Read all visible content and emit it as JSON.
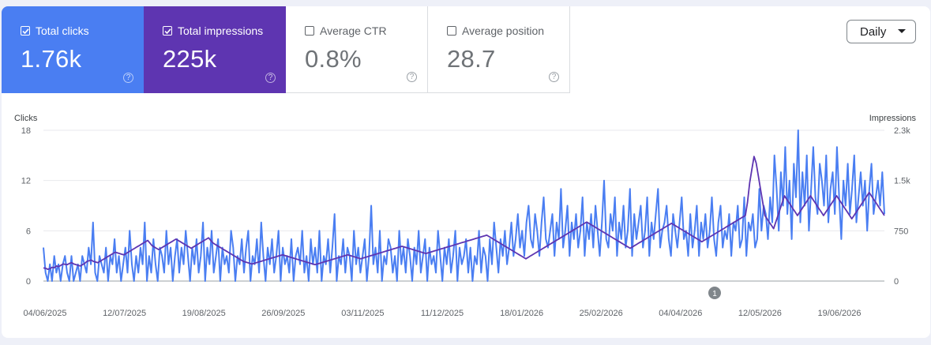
{
  "metrics": [
    {
      "label": "Total clicks",
      "value": "1.76k",
      "checked": true,
      "color": "#4a7ef2"
    },
    {
      "label": "Total impressions",
      "value": "225k",
      "checked": true,
      "color": "#5e35b1"
    },
    {
      "label": "Average CTR",
      "value": "0.8%",
      "checked": false
    },
    {
      "label": "Average position",
      "value": "28.7",
      "checked": false
    }
  ],
  "help_glyph": "?",
  "range_select": {
    "selected": "Daily"
  },
  "annotation_marker": "1",
  "chart_data": {
    "type": "line",
    "xlabel": "",
    "ylabel_left": "Clicks",
    "ylabel_right": "Impressions",
    "x_tick_labels": [
      "04/06/2025",
      "12/07/2025",
      "19/08/2025",
      "26/09/2025",
      "03/11/2025",
      "11/12/2025",
      "18/01/2026",
      "25/02/2026",
      "04/04/2026",
      "12/05/2026",
      "19/06/2026"
    ],
    "y_left": {
      "ticks": [
        "0",
        "6",
        "12",
        "18"
      ],
      "lim": [
        0,
        18
      ]
    },
    "y_right": {
      "ticks": [
        "0",
        "750",
        "1.5k",
        "2.3k"
      ],
      "lim": [
        0,
        2300
      ]
    },
    "grid": true,
    "series": [
      {
        "name": "Clicks",
        "axis": "left",
        "color": "#4a7ef2",
        "values": [
          4,
          1,
          0,
          2,
          0,
          3,
          1,
          2,
          0,
          2,
          3,
          1,
          0,
          3,
          0,
          1,
          2,
          0,
          3,
          2,
          1,
          4,
          2,
          7,
          1,
          0,
          3,
          2,
          1,
          4,
          0,
          3,
          2,
          5,
          1,
          3,
          0,
          2,
          4,
          1,
          6,
          2,
          0,
          3,
          1,
          4,
          2,
          7,
          0,
          3,
          1,
          5,
          2,
          0,
          4,
          3,
          1,
          6,
          2,
          4,
          0,
          3,
          5,
          1,
          4,
          2,
          6,
          3,
          0,
          4,
          2,
          5,
          1,
          3,
          7,
          0,
          4,
          2,
          6,
          1,
          3,
          5,
          0,
          4,
          2,
          3,
          1,
          6,
          4,
          0,
          3,
          2,
          5,
          1,
          4,
          6,
          0,
          3,
          2,
          5,
          1,
          7,
          3,
          0,
          4,
          2,
          5,
          1,
          3,
          6,
          0,
          4,
          2,
          3,
          1,
          5,
          0,
          3,
          4,
          2,
          6,
          1,
          3,
          0,
          5,
          2,
          4,
          1,
          6,
          0,
          3,
          2,
          5,
          1,
          4,
          8,
          0,
          3,
          2,
          5,
          1,
          4,
          3,
          0,
          6,
          2,
          4,
          1,
          3,
          5,
          0,
          3,
          9,
          2,
          4,
          1,
          6,
          0,
          3,
          2,
          5,
          4,
          1,
          3,
          0,
          6,
          2,
          4,
          1,
          5,
          3,
          0,
          4,
          2,
          6,
          1,
          3,
          5,
          0,
          4,
          2,
          3,
          1,
          6,
          3,
          0,
          4,
          2,
          5,
          1,
          3,
          6,
          0,
          4,
          2,
          3,
          5,
          1,
          4,
          0,
          3,
          2,
          6,
          1,
          4,
          3,
          0,
          5,
          2,
          7,
          4,
          1,
          5,
          3,
          6,
          2,
          4,
          7,
          3,
          5,
          8,
          4,
          6,
          3,
          7,
          9,
          5,
          4,
          8,
          6,
          3,
          7,
          10,
          5,
          4,
          6,
          8,
          3,
          7,
          5,
          11,
          4,
          6,
          9,
          3,
          7,
          5,
          8,
          4,
          6,
          10,
          3,
          7,
          5,
          8,
          4,
          9,
          6,
          3,
          7,
          12,
          5,
          4,
          8,
          6,
          10,
          3,
          7,
          5,
          9,
          4,
          6,
          11,
          3,
          8,
          5,
          7,
          9,
          4,
          6,
          10,
          3,
          7,
          5,
          8,
          11,
          4,
          6,
          7,
          9,
          5,
          3,
          8,
          6,
          4,
          7,
          10,
          5,
          6,
          3,
          8,
          4,
          6,
          9,
          3,
          7,
          5,
          8,
          4,
          6,
          10,
          5,
          3,
          7,
          9,
          4,
          6,
          5,
          8,
          3,
          7,
          6,
          9,
          4,
          5,
          10,
          3,
          7,
          6,
          8,
          4,
          5,
          11,
          6,
          9,
          8,
          5,
          10,
          7,
          15,
          11,
          6,
          13,
          9,
          16,
          8,
          12,
          5,
          14,
          10,
          18,
          7,
          13,
          9,
          15,
          6,
          11,
          16,
          10,
          8,
          14,
          12,
          9,
          15,
          7,
          11,
          13,
          8,
          16,
          10,
          5,
          12,
          9,
          14,
          8,
          11,
          15,
          7,
          10,
          13,
          9,
          12,
          6,
          11,
          14,
          8,
          10,
          12,
          9,
          13,
          8
        ],
        "visual_stroke_width": 2
      },
      {
        "name": "Impressions",
        "axis": "right",
        "color": "#5e35b1",
        "values": [
          200,
          195,
          180,
          190,
          210,
          205,
          230,
          220,
          240,
          260,
          255,
          250,
          270,
          280,
          260,
          250,
          240,
          230,
          250,
          270,
          300,
          310,
          320,
          300,
          290,
          280,
          300,
          320,
          340,
          360,
          380,
          400,
          420,
          440,
          430,
          420,
          410,
          400,
          420,
          440,
          460,
          480,
          500,
          520,
          540,
          560,
          580,
          600,
          620,
          580,
          540,
          520,
          500,
          480,
          500,
          520,
          540,
          560,
          580,
          600,
          620,
          640,
          620,
          600,
          580,
          560,
          540,
          520,
          500,
          520,
          540,
          560,
          580,
          600,
          620,
          640,
          660,
          620,
          580,
          560,
          540,
          520,
          500,
          480,
          460,
          440,
          420,
          400,
          380,
          360,
          340,
          320,
          300,
          290,
          280,
          270,
          260,
          270,
          280,
          290,
          300,
          310,
          320,
          330,
          340,
          350,
          360,
          370,
          380,
          390,
          400,
          390,
          380,
          370,
          360,
          350,
          340,
          330,
          320,
          310,
          300,
          290,
          280,
          270,
          260,
          250,
          260,
          270,
          280,
          290,
          300,
          310,
          320,
          330,
          340,
          350,
          360,
          370,
          380,
          390,
          400,
          390,
          380,
          370,
          360,
          350,
          340,
          350,
          360,
          370,
          380,
          390,
          400,
          410,
          420,
          430,
          440,
          450,
          460,
          470,
          480,
          490,
          500,
          510,
          520,
          530,
          520,
          510,
          500,
          490,
          480,
          470,
          460,
          450,
          440,
          430,
          420,
          430,
          440,
          450,
          460,
          470,
          480,
          490,
          500,
          510,
          520,
          530,
          540,
          550,
          560,
          570,
          580,
          590,
          600,
          610,
          620,
          630,
          640,
          650,
          660,
          670,
          680,
          690,
          700,
          680,
          660,
          640,
          620,
          600,
          580,
          560,
          540,
          520,
          500,
          480,
          460,
          440,
          420,
          400,
          380,
          360,
          340,
          360,
          380,
          400,
          420,
          440,
          460,
          480,
          500,
          520,
          540,
          560,
          580,
          600,
          620,
          640,
          660,
          680,
          700,
          720,
          740,
          760,
          780,
          800,
          820,
          840,
          860,
          880,
          900,
          880,
          860,
          840,
          820,
          800,
          780,
          760,
          740,
          720,
          700,
          680,
          660,
          640,
          620,
          600,
          580,
          560,
          540,
          520,
          500,
          520,
          540,
          560,
          580,
          600,
          620,
          640,
          660,
          680,
          700,
          720,
          740,
          760,
          780,
          800,
          820,
          840,
          860,
          880,
          860,
          840,
          820,
          800,
          780,
          760,
          740,
          720,
          700,
          680,
          660,
          640,
          620,
          600,
          620,
          640,
          660,
          680,
          700,
          720,
          740,
          760,
          780,
          800,
          820,
          840,
          860,
          880,
          900,
          920,
          940,
          960,
          980,
          1000,
          1200,
          1500,
          1700,
          1900,
          1800,
          1600,
          1400,
          1200,
          1000,
          950,
          900,
          850,
          800,
          900,
          1000,
          1100,
          1200,
          1300,
          1250,
          1200,
          1150,
          1100,
          1050,
          1000,
          1050,
          1100,
          1150,
          1200,
          1250,
          1300,
          1250,
          1200,
          1150,
          1100,
          1050,
          1000,
          1050,
          1100,
          1150,
          1200,
          1250,
          1300,
          1250,
          1200,
          1150,
          1100,
          1050,
          1000,
          950,
          1000,
          1050,
          1100,
          1150,
          1200,
          1250,
          1300,
          1350,
          1300,
          1250,
          1200,
          1150,
          1100,
          1050,
          1000
        ],
        "visual_stroke_width": 1.8
      }
    ]
  }
}
